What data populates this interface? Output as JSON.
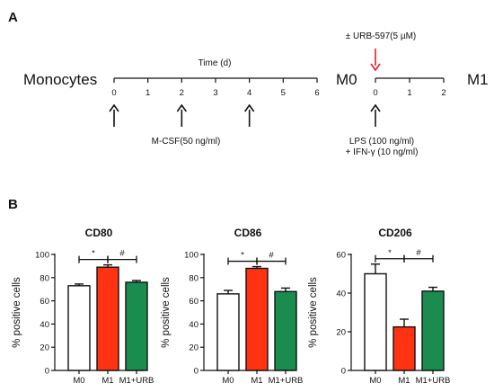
{
  "panel_a": {
    "label": "A",
    "left_title": "Monocytes",
    "mid_title": "M0",
    "right_title": "M1",
    "time_label": "Time (d)",
    "timeline1_ticks": [
      "0",
      "1",
      "2",
      "3",
      "4",
      "5",
      "6"
    ],
    "timeline1_arrows_at": [
      0,
      2,
      4
    ],
    "timeline2_ticks": [
      "0",
      "1",
      "2"
    ],
    "timeline2_arrows_at": [
      0
    ],
    "urb_label": "± URB-597(5 µM)",
    "urb_arrow_color": "#e02020",
    "mcsf_label": "M-CSF(50 ng/ml)",
    "lps_label": "LPS  (100 ng/ml)",
    "ifn_label": "+ IFN-γ (10 ng/ml)"
  },
  "panel_b": {
    "label": "B"
  },
  "colors": {
    "M0": "#ffffff",
    "M1": "#ff3311",
    "M1+URB": "#1a8c4e"
  },
  "chart_data": [
    {
      "type": "bar",
      "title": "CD80",
      "ylabel": "% positive cells",
      "categories": [
        "M0",
        "M1",
        "M1+URB"
      ],
      "values": [
        73,
        89,
        76
      ],
      "errors": [
        1.5,
        2,
        1.5
      ],
      "ylim": [
        0,
        100
      ],
      "yticks": [
        "0",
        "20",
        "40",
        "60",
        "80",
        "100"
      ],
      "annotations": [
        "*",
        "#"
      ]
    },
    {
      "type": "bar",
      "title": "CD86",
      "ylabel": "% positive cells",
      "categories": [
        "M0",
        "M1",
        "M1+URB"
      ],
      "values": [
        66,
        88,
        68
      ],
      "errors": [
        3,
        1.5,
        3
      ],
      "ylim": [
        0,
        100
      ],
      "yticks": [
        "0",
        "20",
        "40",
        "60",
        "80",
        "100"
      ],
      "annotations": [
        "*",
        "#"
      ]
    },
    {
      "type": "bar",
      "title": "CD206",
      "ylabel": "% positive cells",
      "categories": [
        "M0",
        "M1",
        "M1+URB"
      ],
      "values": [
        50,
        22.5,
        41
      ],
      "errors": [
        5,
        4,
        2
      ],
      "ylim": [
        0,
        60
      ],
      "yticks": [
        "0",
        "20",
        "40",
        "60"
      ],
      "annotations": [
        "*",
        "#"
      ]
    }
  ]
}
